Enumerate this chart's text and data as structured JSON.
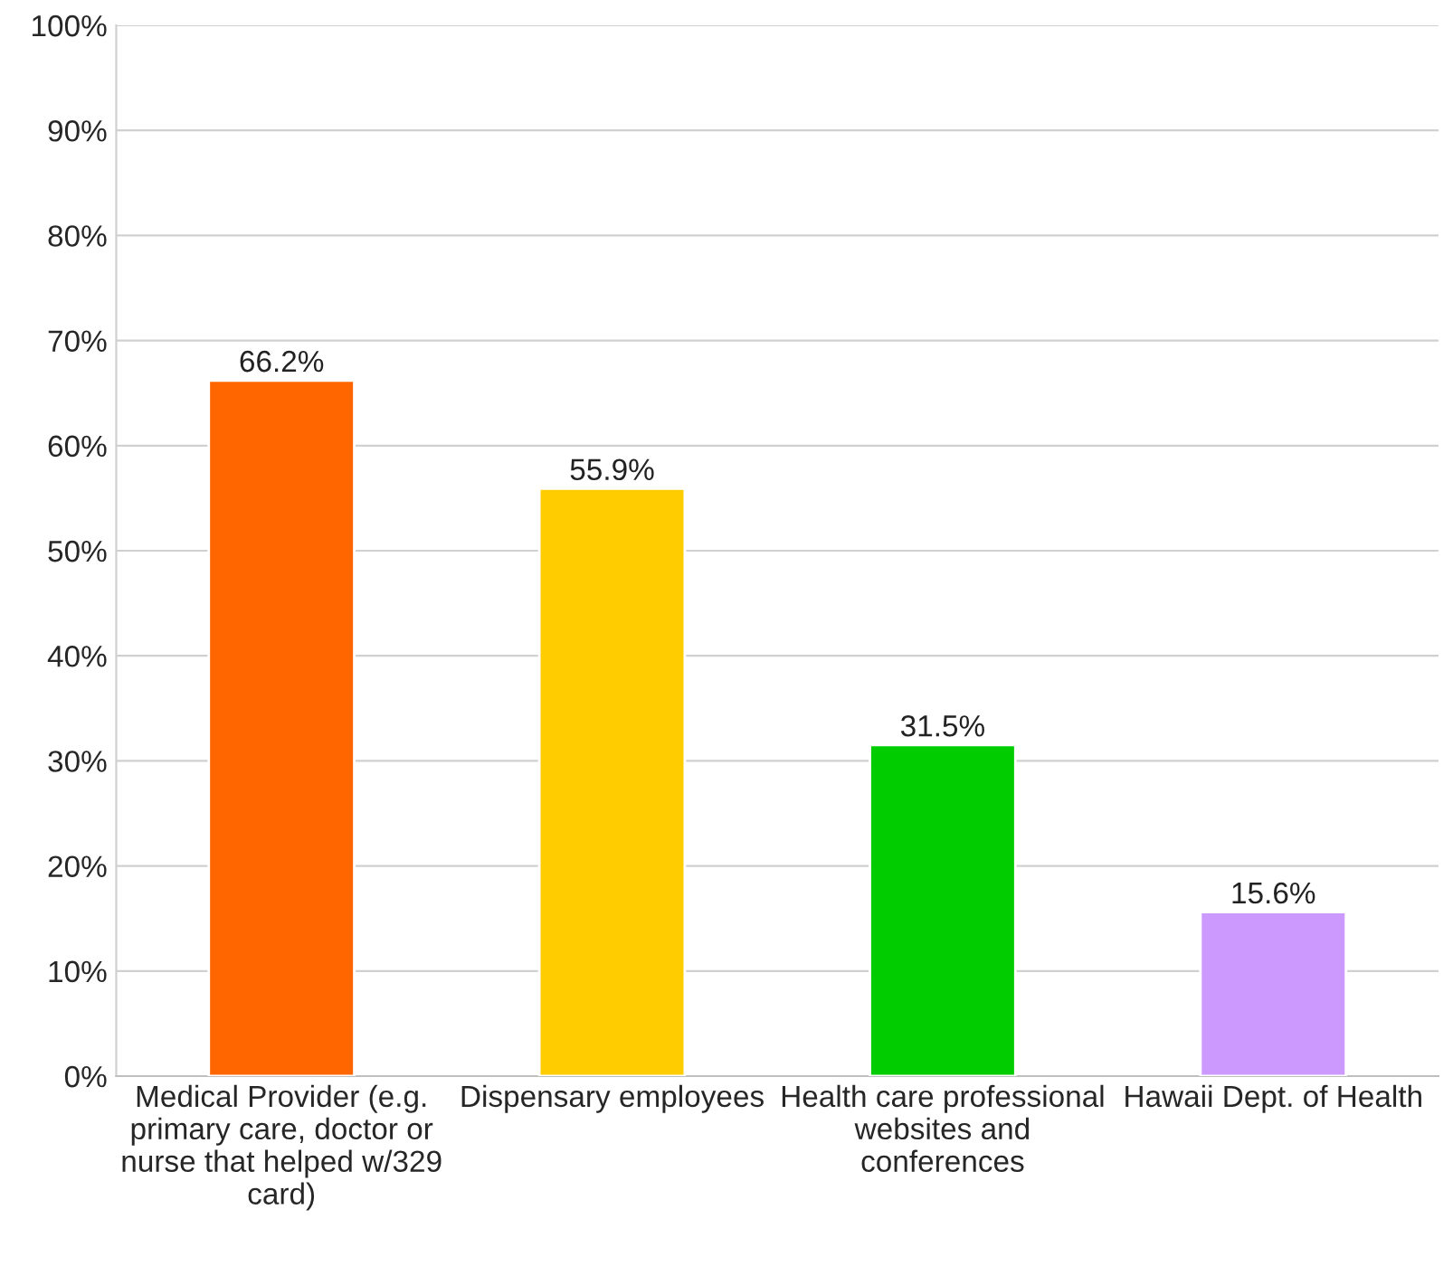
{
  "chart_data": {
    "type": "bar",
    "categories": [
      "Medical Provider (e.g.\nprimary care, doctor or\nnurse that helped w/329\ncard)",
      "Dispensary employees",
      "Health care professional\nwebsites and\nconferences",
      "Hawaii Dept. of Health"
    ],
    "values": [
      66.2,
      55.9,
      31.5,
      15.6
    ],
    "colors": [
      "#ff6600",
      "#ffcc00",
      "#00cc00",
      "#cc99ff"
    ],
    "value_labels": [
      "66.2%",
      "55.9%",
      "31.5%",
      "15.6%"
    ],
    "ylim": [
      0,
      100
    ],
    "yticks": [
      {
        "value": 0,
        "label": "0%"
      },
      {
        "value": 10,
        "label": "10%"
      },
      {
        "value": 20,
        "label": "20%"
      },
      {
        "value": 30,
        "label": "30%"
      },
      {
        "value": 40,
        "label": "40%"
      },
      {
        "value": 50,
        "label": "50%"
      },
      {
        "value": 60,
        "label": "60%"
      },
      {
        "value": 70,
        "label": "70%"
      },
      {
        "value": 80,
        "label": "80%"
      },
      {
        "value": 90,
        "label": "90%"
      },
      {
        "value": 100,
        "label": "100%"
      }
    ],
    "grid": "y"
  }
}
